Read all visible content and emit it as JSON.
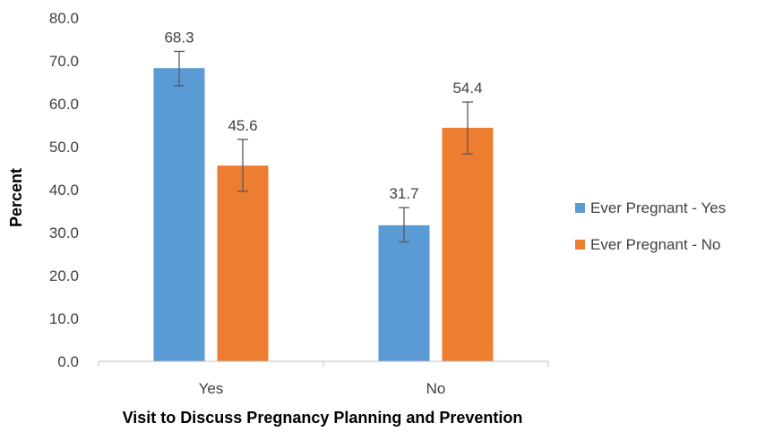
{
  "chart_data": {
    "type": "bar",
    "title": "",
    "xlabel": "Visit to Discuss Pregnancy Planning and Prevention",
    "ylabel": "Percent",
    "categories": [
      "Yes",
      "No"
    ],
    "ylim": [
      0,
      80
    ],
    "yticks": [
      "0.0",
      "10.0",
      "20.0",
      "30.0",
      "40.0",
      "50.0",
      "60.0",
      "70.0",
      "80.0"
    ],
    "grid": false,
    "legend_position": "right",
    "series": [
      {
        "name": "Ever Pregnant - Yes",
        "color": "#5b9bd5",
        "values": [
          68.3,
          31.7
        ],
        "labels": [
          "68.3",
          "31.7"
        ],
        "error_low": [
          64.2,
          27.8
        ],
        "error_high": [
          72.2,
          35.8
        ]
      },
      {
        "name": "Ever Pregnant - No",
        "color": "#ed7d31",
        "values": [
          45.6,
          54.4
        ],
        "labels": [
          "45.6",
          "54.4"
        ],
        "error_low": [
          39.6,
          48.3
        ],
        "error_high": [
          51.7,
          60.4
        ]
      }
    ]
  }
}
